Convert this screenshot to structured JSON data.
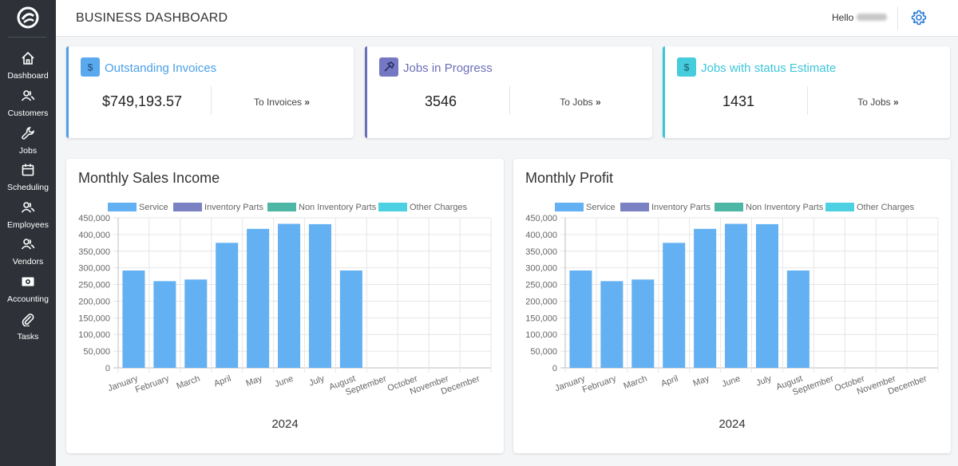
{
  "sidebar": {
    "items": [
      {
        "label": "Dashboard",
        "icon": "home-icon"
      },
      {
        "label": "Customers",
        "icon": "users-icon"
      },
      {
        "label": "Jobs",
        "icon": "wrench-icon"
      },
      {
        "label": "Scheduling",
        "icon": "calendar-icon"
      },
      {
        "label": "Employees",
        "icon": "users-icon"
      },
      {
        "label": "Vendors",
        "icon": "users-icon"
      },
      {
        "label": "Accounting",
        "icon": "money-icon"
      },
      {
        "label": "Tasks",
        "icon": "paperclip-icon"
      }
    ]
  },
  "header": {
    "title": "BUSINESS DASHBOARD",
    "greeting": "Hello"
  },
  "stats": [
    {
      "title": "Outstanding Invoices",
      "value": "$749,193.57",
      "link": "To Invoices",
      "color": "#4a9fe8",
      "badge_color": "#5aa9ef",
      "icon": "dollar-icon"
    },
    {
      "title": "Jobs in Progress",
      "value": "3546",
      "link": "To Jobs",
      "color": "#6b6fb8",
      "badge_color": "#7478c2",
      "icon": "hammer-icon"
    },
    {
      "title": "Jobs with status Estimate",
      "value": "1431",
      "link": "To Jobs",
      "color": "#3cc6d9",
      "badge_color": "#46ccdc",
      "icon": "dollar-icon"
    }
  ],
  "chart_data": [
    {
      "type": "bar",
      "title": "Monthly Sales Income",
      "xlabel": "2024",
      "categories": [
        "January",
        "February",
        "March",
        "April",
        "May",
        "June",
        "July",
        "August",
        "September",
        "October",
        "November",
        "December"
      ],
      "series": [
        {
          "name": "Service",
          "color": "#63b0f2",
          "values": [
            292000,
            260000,
            265000,
            375000,
            417000,
            432000,
            431000,
            292000,
            0,
            0,
            0,
            0
          ]
        },
        {
          "name": "Inventory Parts",
          "color": "#7b82c4",
          "values": [
            0,
            0,
            0,
            0,
            0,
            0,
            0,
            0,
            0,
            0,
            0,
            0
          ]
        },
        {
          "name": "Non Inventory Parts",
          "color": "#4db6a4",
          "values": [
            0,
            0,
            0,
            0,
            0,
            0,
            0,
            0,
            0,
            0,
            0,
            0
          ]
        },
        {
          "name": "Other Charges",
          "color": "#4dd0e1",
          "values": [
            0,
            0,
            0,
            0,
            0,
            0,
            0,
            0,
            0,
            0,
            0,
            0
          ]
        }
      ],
      "ylim": [
        0,
        450000
      ],
      "yticks": [
        "450,000",
        "400,000",
        "350,000",
        "300,000",
        "250,000",
        "200,000",
        "150,000",
        "100,000",
        "50,000",
        "0"
      ],
      "legend": "top",
      "grid": true
    },
    {
      "type": "bar",
      "title": "Monthly Profit",
      "xlabel": "2024",
      "categories": [
        "January",
        "February",
        "March",
        "April",
        "May",
        "June",
        "July",
        "August",
        "September",
        "October",
        "November",
        "December"
      ],
      "series": [
        {
          "name": "Service",
          "color": "#63b0f2",
          "values": [
            292000,
            260000,
            265000,
            375000,
            417000,
            432000,
            431000,
            292000,
            0,
            0,
            0,
            0
          ]
        },
        {
          "name": "Inventory Parts",
          "color": "#7b82c4",
          "values": [
            0,
            0,
            0,
            0,
            0,
            0,
            0,
            0,
            0,
            0,
            0,
            0
          ]
        },
        {
          "name": "Non Inventory Parts",
          "color": "#4db6a4",
          "values": [
            0,
            0,
            0,
            0,
            0,
            0,
            0,
            0,
            0,
            0,
            0,
            0
          ]
        },
        {
          "name": "Other Charges",
          "color": "#4dd0e1",
          "values": [
            0,
            0,
            0,
            0,
            0,
            0,
            0,
            0,
            0,
            0,
            0,
            0
          ]
        }
      ],
      "ylim": [
        0,
        450000
      ],
      "yticks": [
        "450,000",
        "400,000",
        "350,000",
        "300,000",
        "250,000",
        "200,000",
        "150,000",
        "100,000",
        "50,000",
        "0"
      ],
      "legend": "top",
      "grid": true
    }
  ]
}
